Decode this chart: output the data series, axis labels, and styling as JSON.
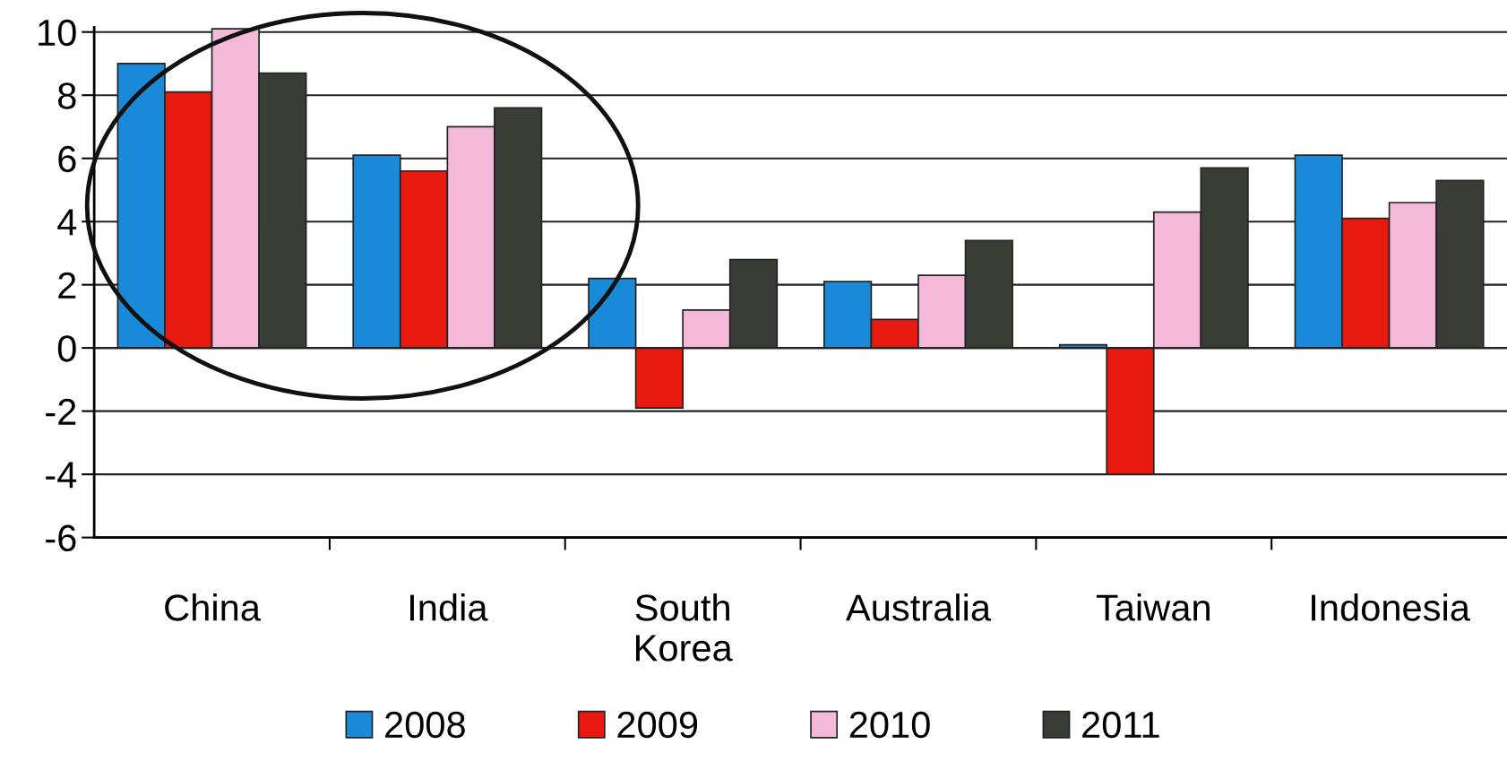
{
  "chart_data": {
    "type": "bar",
    "categories": [
      "China",
      "India",
      "South\nKorea",
      "Australia",
      "Taiwan",
      "Indonesia"
    ],
    "series": [
      {
        "name": "2008",
        "color": "#1a8ad8",
        "values": [
          9.0,
          6.1,
          2.2,
          2.1,
          0.1,
          6.1
        ]
      },
      {
        "name": "2009",
        "color": "#e8190f",
        "values": [
          8.1,
          5.6,
          -1.9,
          0.9,
          -4.0,
          4.1
        ]
      },
      {
        "name": "2010",
        "color": "#f4b8d8",
        "values": [
          10.1,
          7.0,
          1.2,
          2.3,
          4.3,
          4.6
        ]
      },
      {
        "name": "2011",
        "color": "#3a3d36",
        "values": [
          8.7,
          7.6,
          2.8,
          3.4,
          5.7,
          5.3
        ]
      }
    ],
    "ylim": [
      -6,
      10.15
    ],
    "yticks": [
      -6,
      -4,
      -2,
      0,
      2,
      4,
      6,
      8,
      10
    ],
    "grid": "y",
    "legend": "bottom"
  }
}
